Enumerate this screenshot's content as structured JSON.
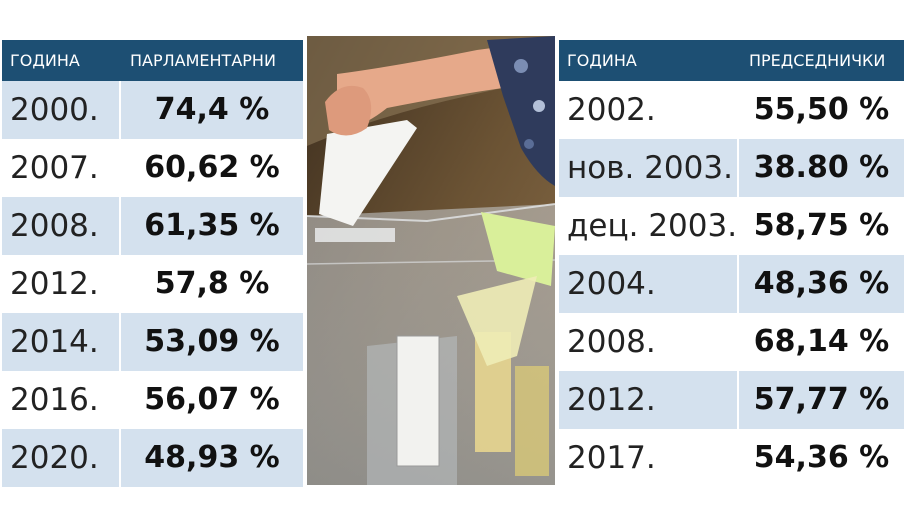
{
  "parliamentary": {
    "header_year": "ГОДИНА",
    "header_value": "ПАРЛАМЕНТАРНИ",
    "rows": [
      {
        "year": "2000.",
        "value": "74,4 %"
      },
      {
        "year": "2007.",
        "value": "60,62 %"
      },
      {
        "year": "2008.",
        "value": "61,35 %"
      },
      {
        "year": "2012.",
        "value": "57,8 %"
      },
      {
        "year": "2014.",
        "value": "53,09 %"
      },
      {
        "year": "2016.",
        "value": "56,07 %"
      },
      {
        "year": "2020.",
        "value": "48,93 %"
      }
    ]
  },
  "presidential": {
    "header_year": "ГОДИНА",
    "header_value": "ПРЕДСЕДНИЧКИ",
    "rows": [
      {
        "year": "2002.",
        "value": "55,50 %"
      },
      {
        "year": "нов. 2003.",
        "value": "38.80 %"
      },
      {
        "year": "дец. 2003.",
        "value": "58,75 %"
      },
      {
        "year": "2004.",
        "value": "48,36 %"
      },
      {
        "year": "2008.",
        "value": "68,14 %"
      },
      {
        "year": "2012.",
        "value": "57,77 %"
      },
      {
        "year": "2017.",
        "value": "54,36 %"
      }
    ]
  },
  "colors": {
    "header_bg": "#1d4f73",
    "row_shaded": "#d4e1ee",
    "row_plain": "#ffffff"
  }
}
